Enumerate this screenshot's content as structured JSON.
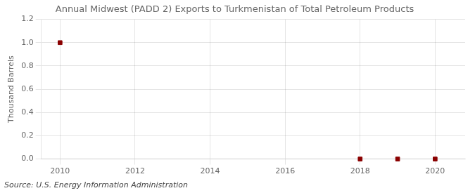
{
  "chart_data": {
    "type": "scatter",
    "title": "Annual Midwest (PADD 2) Exports to Turkmenistan of Total Petroleum Products",
    "y_label": "Thousand Barrels",
    "annotation": "Source: U.S. Energy Information Administration",
    "x": [
      2010,
      2018,
      2019,
      2020
    ],
    "values": [
      1.0,
      0.0,
      0.0,
      0.0
    ],
    "color": "#8b0000",
    "marker": "square",
    "xlim": [
      2009.5,
      2020.8
    ],
    "ylim": [
      0.0,
      1.2
    ],
    "xticks": [
      2010,
      2012,
      2014,
      2016,
      2018,
      2020
    ],
    "yticks": [
      {
        "value": 0,
        "label": "0.0"
      },
      0.2,
      0.4,
      0.6,
      0.8,
      {
        "value": 1,
        "label": "1.0"
      },
      1.2
    ],
    "grid": true
  }
}
